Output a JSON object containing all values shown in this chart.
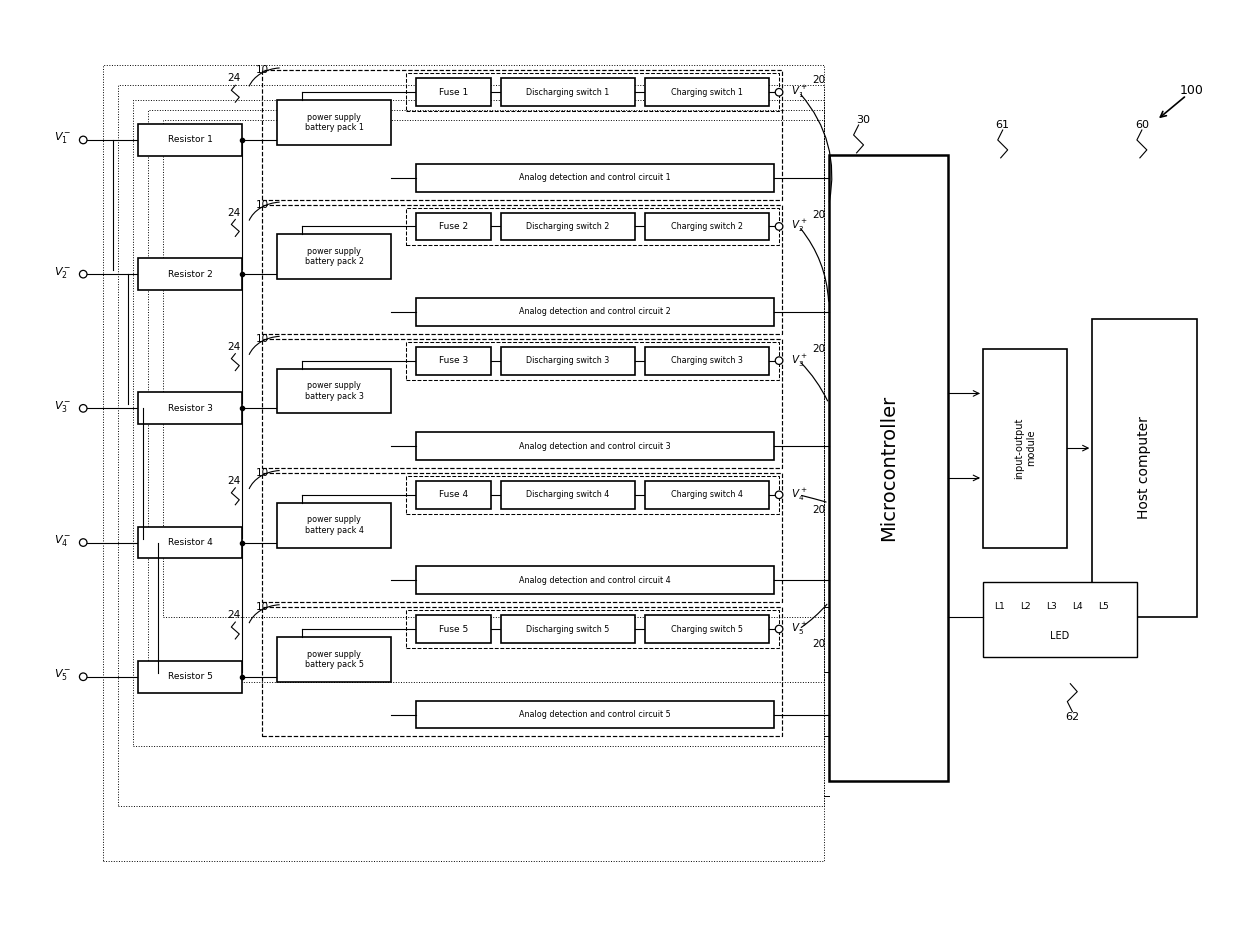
{
  "bg_color": "#ffffff",
  "v_inputs": [
    "$V_1^-$",
    "$V_2^-$",
    "$V_3^-$",
    "$V_4^-$",
    "$V_5^-$"
  ],
  "resistors": [
    "Resistor 1",
    "Resistor 2",
    "Resistor 3",
    "Resistor 4",
    "Resistor 5"
  ],
  "psbp": [
    "power supply\nbattery pack 1",
    "power supply\nbattery pack 2",
    "power supply\nbattery pack 3",
    "power supply\nbattery pack 4",
    "power supply\nbattery pack 5"
  ],
  "fuses": [
    "Fuse 1",
    "Fuse 2",
    "Fuse 3",
    "Fuse 4",
    "Fuse 5"
  ],
  "discharging": [
    "Discharging switch 1",
    "Discharging switch 2",
    "Discharging switch 3",
    "Discharging switch 4",
    "Discharging switch 5"
  ],
  "charging": [
    "Charging switch 1",
    "Charging switch 2",
    "Charging switch 3",
    "Charging switch 4",
    "Charging switch 5"
  ],
  "v_outputs": [
    "$V_1^+$",
    "$V_2^+$",
    "$V_3^+$",
    "$V_4^+$",
    "$V_5^+$"
  ],
  "analog": [
    "Analog detection and control circuit 1",
    "Analog detection and control circuit 2",
    "Analog detection and control circuit 3",
    "Analog detection and control circuit 4",
    "Analog detection and control circuit 5"
  ],
  "microcontroller": "Microcontroller",
  "io_module": "input-output\nmodule",
  "host_computer": "Host computer",
  "led_label": "LED",
  "led_names": [
    "L1",
    "L2",
    "L3",
    "L4",
    "L5"
  ],
  "n100": "100",
  "n20": "20",
  "n30": "30",
  "n24": "24",
  "n10": "10",
  "n60": "60",
  "n61": "61",
  "n62": "62"
}
